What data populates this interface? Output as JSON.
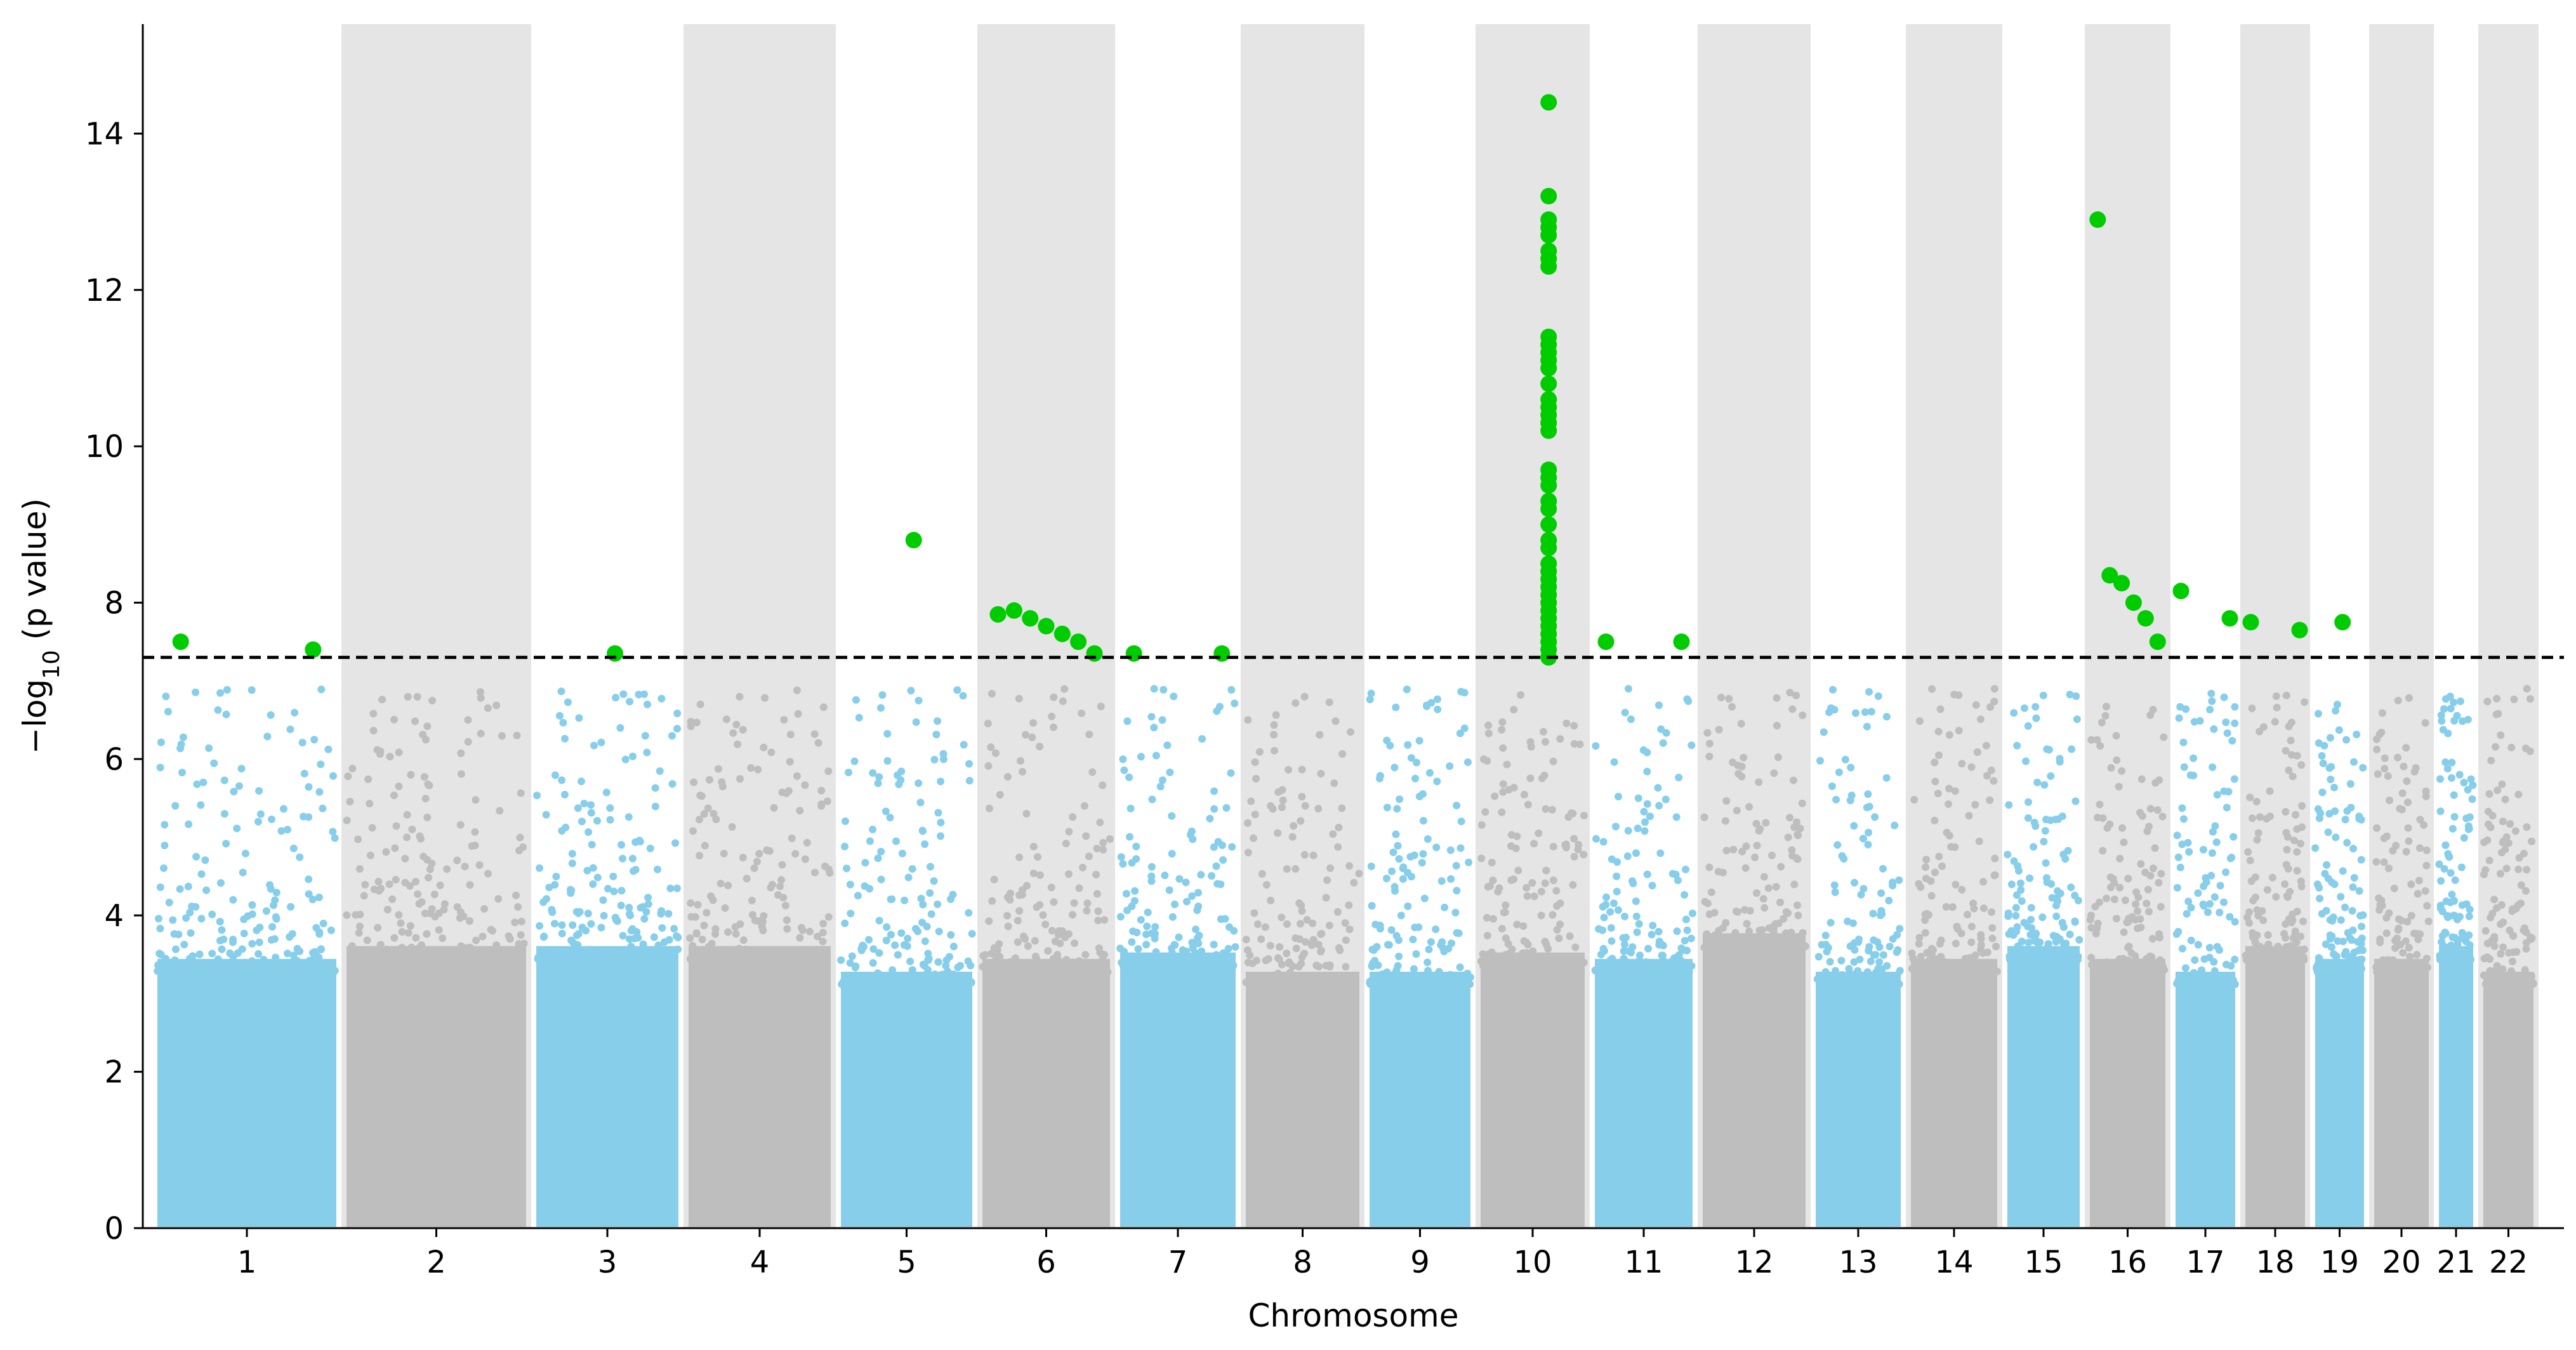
{
  "chart_data": {
    "type": "scatter",
    "subtype": "manhattan",
    "title": "",
    "xlabel": "Chromosome",
    "ylabel_main": "−log",
    "ylabel_sub": "10",
    "ylabel_rest": " (p value)",
    "ylim": [
      0,
      15.4
    ],
    "yticks": [
      0,
      2,
      4,
      6,
      8,
      10,
      12,
      14
    ],
    "significance_threshold": 7.3,
    "threshold_style": "dashed",
    "grid": false,
    "background_bands": "alternating grey bands on even chromosomes",
    "colors": {
      "odd_chromosomes": "#87ceeb",
      "even_chromosomes": "#bebebe",
      "significant": "#00cc00",
      "band": "#e5e5e5",
      "threshold": "#000000"
    },
    "chromosomes": [
      {
        "label": "1",
        "background_level": 4.2,
        "significant_y": [
          7.5,
          7.4
        ]
      },
      {
        "label": "2",
        "background_level": 4.4,
        "significant_y": []
      },
      {
        "label": "3",
        "background_level": 4.4,
        "significant_y": [
          7.35
        ]
      },
      {
        "label": "4",
        "background_level": 4.4,
        "significant_y": []
      },
      {
        "label": "5",
        "background_level": 4.0,
        "significant_y": [
          8.8
        ]
      },
      {
        "label": "6",
        "background_level": 4.2,
        "significant_y": [
          7.85,
          7.9,
          7.8,
          7.7,
          7.6,
          7.5,
          7.35
        ]
      },
      {
        "label": "7",
        "background_level": 4.3,
        "significant_y": [
          7.35,
          7.35
        ]
      },
      {
        "label": "8",
        "background_level": 4.0,
        "significant_y": []
      },
      {
        "label": "9",
        "background_level": 4.0,
        "significant_y": []
      },
      {
        "label": "10",
        "background_level": 4.3,
        "significant_y": [
          14.4,
          13.2,
          12.9,
          12.8,
          12.7,
          12.5,
          12.4,
          12.3,
          11.4,
          11.3,
          11.2,
          11.1,
          11.0,
          10.8,
          10.6,
          10.5,
          10.4,
          10.3,
          10.2,
          9.7,
          9.6,
          9.5,
          9.3,
          9.2,
          9.0,
          8.8,
          8.7,
          8.5,
          8.4,
          8.3,
          8.2,
          8.1,
          8.0,
          7.9,
          7.8,
          7.7,
          7.6,
          7.5,
          7.4,
          7.3
        ]
      },
      {
        "label": "11",
        "background_level": 4.2,
        "significant_y": [
          7.5,
          7.5
        ]
      },
      {
        "label": "12",
        "background_level": 4.6,
        "significant_y": []
      },
      {
        "label": "13",
        "background_level": 4.0,
        "significant_y": []
      },
      {
        "label": "14",
        "background_level": 4.2,
        "significant_y": []
      },
      {
        "label": "15",
        "background_level": 4.4,
        "significant_y": []
      },
      {
        "label": "16",
        "background_level": 4.2,
        "significant_y": [
          12.9,
          8.35,
          8.25,
          8.0,
          7.8,
          7.5
        ]
      },
      {
        "label": "17",
        "background_level": 4.0,
        "significant_y": [
          8.15,
          7.8
        ]
      },
      {
        "label": "18",
        "background_level": 4.4,
        "significant_y": [
          7.75,
          7.65
        ]
      },
      {
        "label": "19",
        "background_level": 4.2,
        "significant_y": [
          7.75
        ]
      },
      {
        "label": "20",
        "background_level": 4.2,
        "significant_y": []
      },
      {
        "label": "21",
        "background_level": 4.4,
        "significant_y": []
      },
      {
        "label": "22",
        "background_level": 4.0,
        "significant_y": []
      }
    ]
  }
}
